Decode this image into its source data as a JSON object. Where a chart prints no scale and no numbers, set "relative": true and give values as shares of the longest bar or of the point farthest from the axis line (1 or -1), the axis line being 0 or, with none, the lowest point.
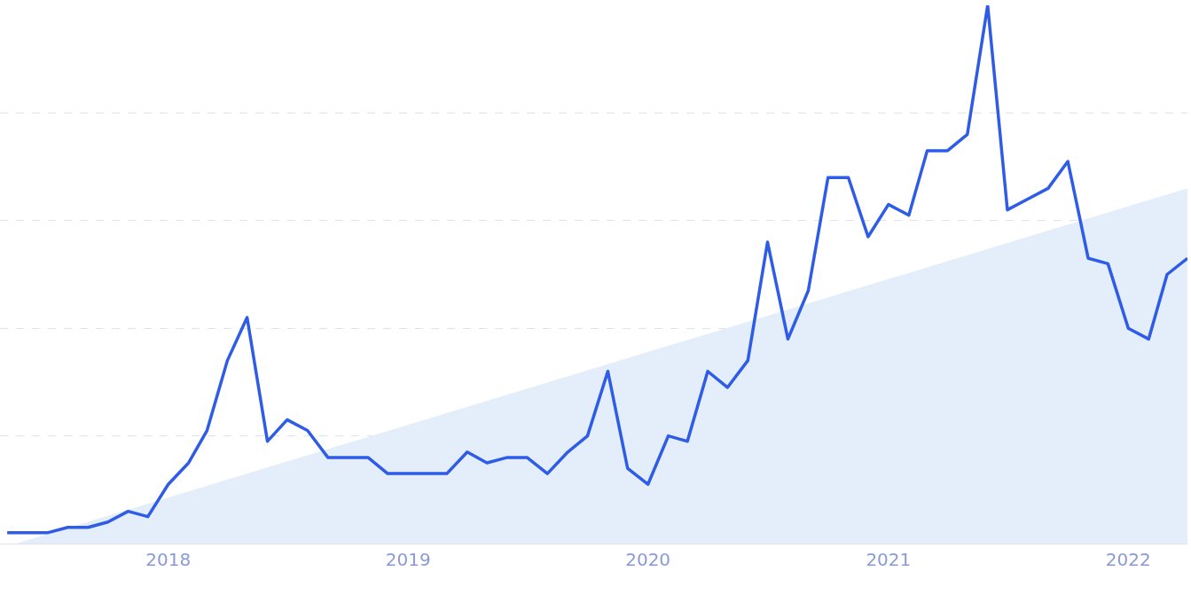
{
  "chart_data": {
    "type": "line",
    "relative": true,
    "grid": "y",
    "tick_labels": "x",
    "x": [
      "2017-05",
      "2017-06",
      "2017-07",
      "2017-08",
      "2017-09",
      "2017-10",
      "2017-11",
      "2017-12",
      "2018-01",
      "2018-02",
      "2018-03",
      "2018-04",
      "2018-05",
      "2018-06",
      "2018-07",
      "2018-08",
      "2018-09",
      "2018-10",
      "2018-11",
      "2018-12",
      "2019-01",
      "2019-02",
      "2019-03",
      "2019-04",
      "2019-05",
      "2019-06",
      "2019-07",
      "2019-08",
      "2019-09",
      "2019-10",
      "2019-11",
      "2019-12",
      "2020-01",
      "2020-02",
      "2020-03",
      "2020-04",
      "2020-05",
      "2020-06",
      "2020-07",
      "2020-08",
      "2020-09",
      "2020-10",
      "2020-11",
      "2020-12",
      "2021-01",
      "2021-02",
      "2021-03",
      "2021-04",
      "2021-05",
      "2021-06",
      "2021-07",
      "2021-08",
      "2021-09",
      "2021-10",
      "2021-11",
      "2021-12",
      "2022-01",
      "2022-02",
      "2022-03",
      "2022-04"
    ],
    "xlim": [
      "2017-04-20",
      "2022-04-01"
    ],
    "xticks": [
      {
        "value": "2018-01-01",
        "label": "2018"
      },
      {
        "value": "2019-01-01",
        "label": "2019"
      },
      {
        "value": "2020-01-01",
        "label": "2020"
      },
      {
        "value": "2021-01-01",
        "label": "2021"
      },
      {
        "value": "2022-01-01",
        "label": "2022"
      }
    ],
    "series": [
      {
        "type": "area",
        "color": "#e4eefb",
        "x": [
          "2017-05-15",
          "2022-04-01"
        ],
        "values": [
          0,
          0.66
        ]
      },
      {
        "color": "#2f5ce6",
        "values": [
          0.02,
          0.02,
          0.02,
          0.03,
          0.03,
          0.04,
          0.06,
          0.05,
          0.11,
          0.15,
          0.21,
          0.34,
          0.42,
          0.19,
          0.23,
          0.21,
          0.16,
          0.16,
          0.16,
          0.13,
          0.13,
          0.13,
          0.13,
          0.17,
          0.15,
          0.16,
          0.16,
          0.13,
          0.17,
          0.2,
          0.32,
          0.14,
          0.11,
          0.2,
          0.19,
          0.32,
          0.29,
          0.34,
          0.56,
          0.38,
          0.47,
          0.68,
          0.68,
          0.57,
          0.63,
          0.61,
          0.73,
          0.73,
          0.76,
          1,
          0.62,
          0.64,
          0.66,
          0.71,
          0.53,
          0.52,
          0.4,
          0.38,
          0.5,
          0.53
        ]
      }
    ]
  }
}
